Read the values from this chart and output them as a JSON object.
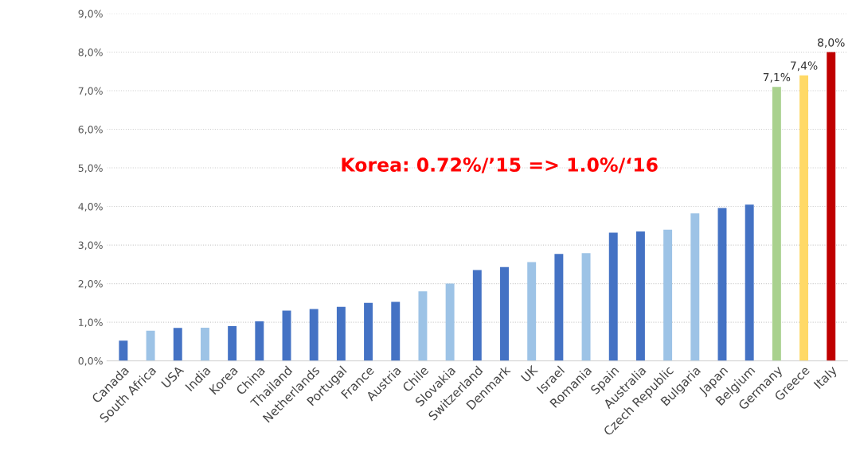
{
  "chart_data": {
    "type": "bar",
    "categories": [
      "Canada",
      "South Africa",
      "USA",
      "India",
      "Korea",
      "China",
      "Thailand",
      "Netherlands",
      "Portugal",
      "France",
      "Austria",
      "Chile",
      "Slovakia",
      "Switzerland",
      "Denmark",
      "UK",
      "Israel",
      "Romania",
      "Spain",
      "Australia",
      "Czech Republic",
      "Bulgaria",
      "Japan",
      "Belgium",
      "Germany",
      "Greece",
      "Italy"
    ],
    "values": [
      0.52,
      0.78,
      0.85,
      0.86,
      0.9,
      1.02,
      1.3,
      1.34,
      1.4,
      1.5,
      1.53,
      1.8,
      2.0,
      2.35,
      2.43,
      2.56,
      2.77,
      2.79,
      3.32,
      3.35,
      3.4,
      3.82,
      3.96,
      4.05,
      7.1,
      7.4,
      8.0
    ],
    "colors": [
      "#4472c4",
      "#9dc3e6",
      "#4472c4",
      "#9dc3e6",
      "#4472c4",
      "#4472c4",
      "#4472c4",
      "#4472c4",
      "#4472c4",
      "#4472c4",
      "#4472c4",
      "#9dc3e6",
      "#9dc3e6",
      "#4472c4",
      "#4472c4",
      "#9dc3e6",
      "#4472c4",
      "#9dc3e6",
      "#4472c4",
      "#4472c4",
      "#9dc3e6",
      "#9dc3e6",
      "#4472c4",
      "#4472c4",
      "#a9d18e",
      "#ffd966",
      "#c00000"
    ],
    "value_labels": [
      null,
      null,
      null,
      null,
      null,
      null,
      null,
      null,
      null,
      null,
      null,
      null,
      null,
      null,
      null,
      null,
      null,
      null,
      null,
      null,
      null,
      null,
      null,
      null,
      "7,1%",
      "7,4%",
      "8,0%"
    ],
    "ylim": [
      0,
      9
    ],
    "yticks": [
      {
        "value": 0,
        "label": "0,0%"
      },
      {
        "value": 1,
        "label": "1,0%"
      },
      {
        "value": 2,
        "label": "2,0%"
      },
      {
        "value": 3,
        "label": "3,0%"
      },
      {
        "value": 4,
        "label": "4,0%"
      },
      {
        "value": 5,
        "label": "5,0%"
      },
      {
        "value": 6,
        "label": "6,0%"
      },
      {
        "value": 7,
        "label": "7,0%"
      },
      {
        "value": 8,
        "label": "8,0%"
      },
      {
        "value": 9,
        "label": "9,0%"
      }
    ],
    "grid": "y",
    "annotations": [
      "Korea: 0.72%/’15 => 1.0%/‘16"
    ]
  }
}
